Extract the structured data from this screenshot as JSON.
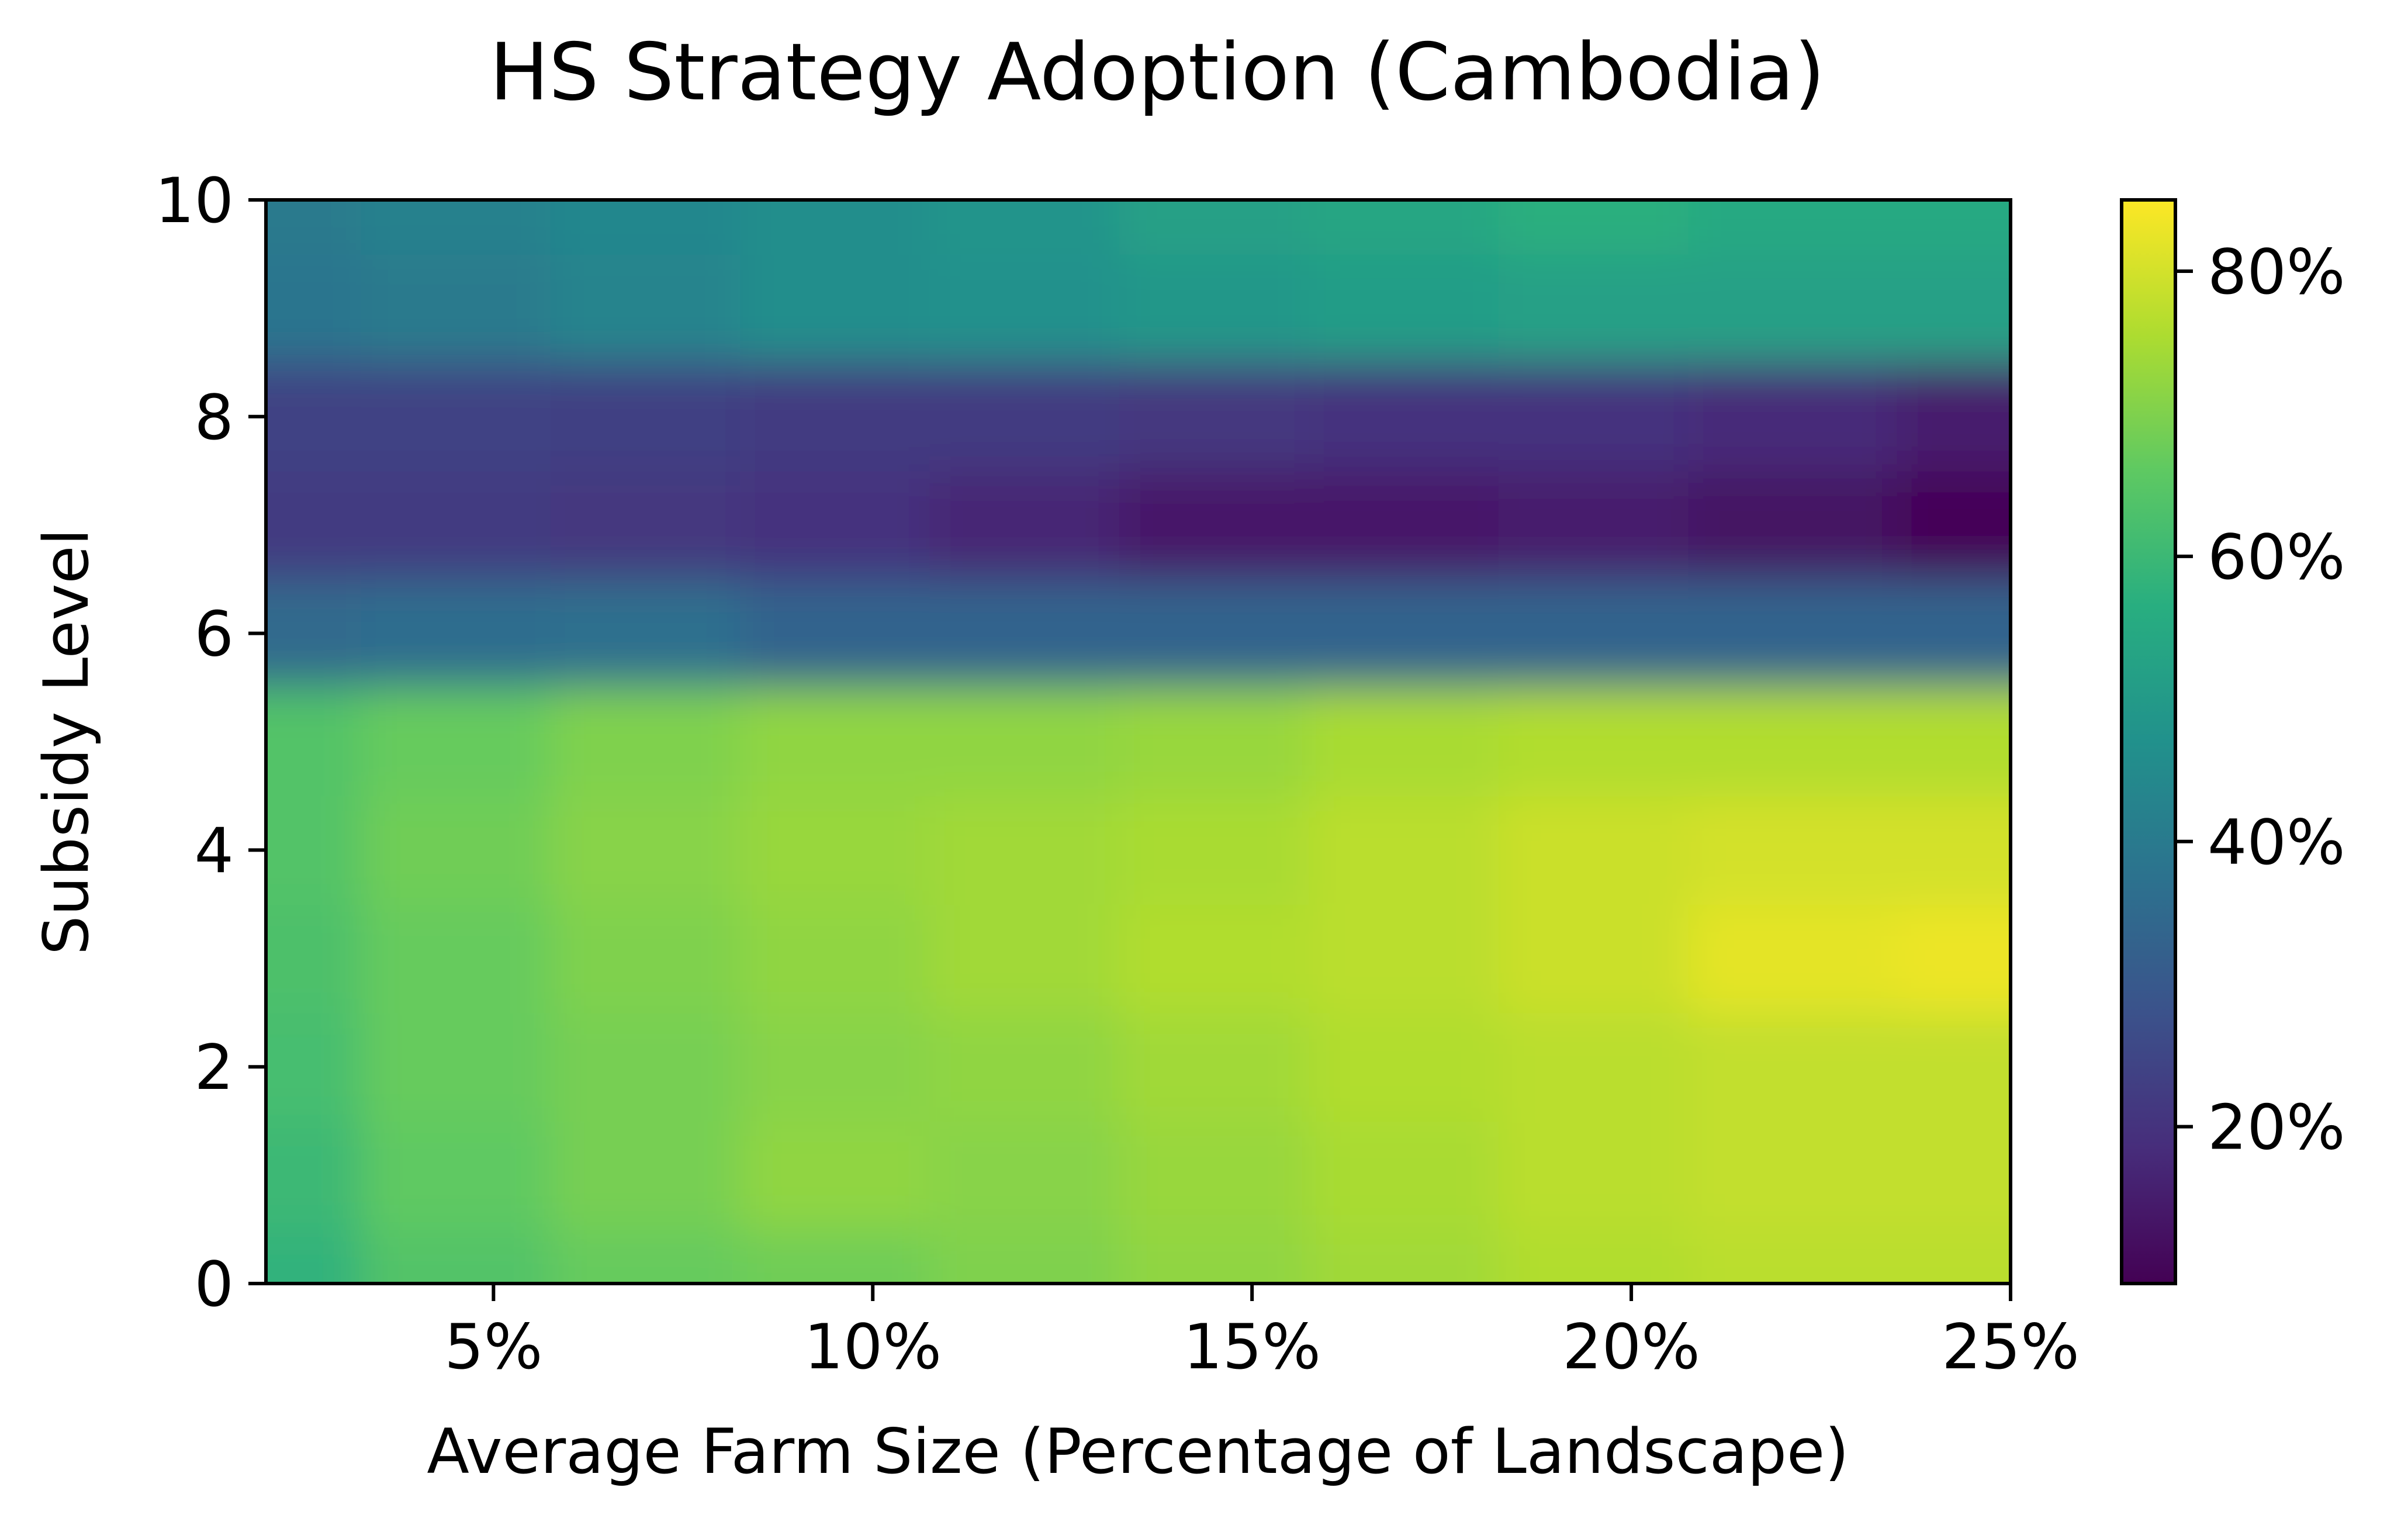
{
  "chart_data": {
    "type": "heatmap",
    "title": "HS Strategy Adoption (Cambodia)",
    "xlabel": "Average Farm Size (Percentage of Landscape)",
    "ylabel": "Subsidy Level",
    "xlim": [
      2,
      25
    ],
    "ylim": [
      0,
      10
    ],
    "x_ticks": [
      {
        "value": 5,
        "label": "5%"
      },
      {
        "value": 10,
        "label": "10%"
      },
      {
        "value": 15,
        "label": "15%"
      },
      {
        "value": 20,
        "label": "20%"
      },
      {
        "value": 25,
        "label": "25%"
      }
    ],
    "y_ticks": [
      {
        "value": 0,
        "label": "0"
      },
      {
        "value": 2,
        "label": "2"
      },
      {
        "value": 4,
        "label": "4"
      },
      {
        "value": 6,
        "label": "6"
      },
      {
        "value": 8,
        "label": "8"
      },
      {
        "value": 10,
        "label": "10"
      }
    ],
    "colorbar": {
      "colormap": "viridis",
      "range": [
        9,
        85
      ],
      "ticks": [
        {
          "value": 20,
          "label": "20%"
        },
        {
          "value": 40,
          "label": "40%"
        },
        {
          "value": 60,
          "label": "60%"
        },
        {
          "value": 80,
          "label": "80%"
        }
      ]
    },
    "x": [
      2,
      4.5,
      7,
      9.5,
      12,
      14.5,
      17,
      19.5,
      22,
      25
    ],
    "y": [
      0,
      1,
      2,
      3,
      4,
      5,
      6,
      7,
      8,
      9,
      10
    ],
    "z": [
      [
        58,
        64,
        67,
        68,
        70,
        72,
        74,
        76,
        77,
        77
      ],
      [
        60,
        66,
        69,
        72,
        71,
        73,
        75,
        77,
        78,
        78
      ],
      [
        62,
        67,
        69,
        71,
        72,
        74,
        76,
        77,
        78,
        78
      ],
      [
        63,
        67,
        70,
        72,
        74,
        76,
        77,
        79,
        82,
        83
      ],
      [
        64,
        68,
        71,
        73,
        74,
        75,
        77,
        79,
        80,
        80
      ],
      [
        64,
        67,
        70,
        72,
        72,
        73,
        75,
        76,
        76,
        76
      ],
      [
        35,
        36,
        37,
        33,
        33,
        33,
        33,
        33,
        33,
        33
      ],
      [
        22,
        22,
        21,
        20,
        17,
        14,
        14,
        15,
        13,
        10
      ],
      [
        24,
        24,
        23,
        22,
        22,
        21,
        20,
        20,
        18,
        15
      ],
      [
        38,
        40,
        43,
        46,
        47,
        49,
        51,
        52,
        52,
        52
      ],
      [
        40,
        42,
        44,
        46,
        48,
        52,
        54,
        57,
        55,
        55
      ]
    ]
  }
}
